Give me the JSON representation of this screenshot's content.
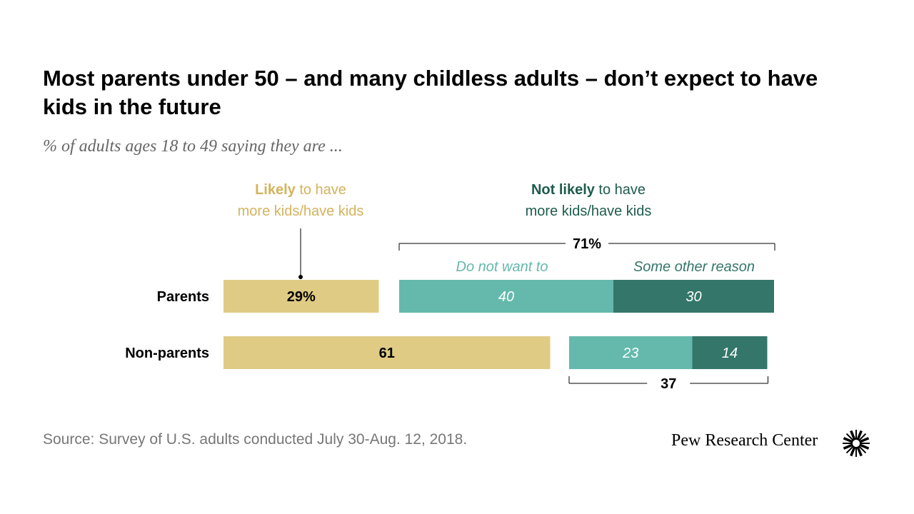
{
  "title": "Most parents under 50 – and many childless adults – don’t expect to have kids in the future",
  "subtitle": "% of adults ages 18 to 49 saying they are ...",
  "source": "Source: Survey of U.S. adults conducted July 30-Aug. 12, 2018.",
  "brand": "Pew Research Center",
  "colors": {
    "likely": "#e0cb85",
    "likely_text": "#d4b35c",
    "do_not_want": "#64b9ac",
    "other_reason": "#34766a",
    "not_likely_text": "#1d5c4e"
  },
  "chart_data": {
    "type": "bar",
    "stacked": true,
    "orientation": "horizontal",
    "categories": [
      "Parents",
      "Non-parents"
    ],
    "header_likely": {
      "bold": "Likely",
      "rest_line1": " to have",
      "line2": "more kids/have kids"
    },
    "header_not_likely": {
      "bold": "Not likely",
      "rest_line1": " to have",
      "line2": "more kids/have kids"
    },
    "subheader_do_not_want": "Do not want to",
    "subheader_other": "Some other reason",
    "series": [
      {
        "name": "Likely to have more kids/have kids",
        "values": [
          29,
          61
        ],
        "labels": [
          "29%",
          "61"
        ]
      },
      {
        "name": "Do not want to",
        "values": [
          40,
          23
        ],
        "labels": [
          "40",
          "23"
        ]
      },
      {
        "name": "Some other reason",
        "values": [
          30,
          14
        ],
        "labels": [
          "30",
          "14"
        ]
      }
    ],
    "not_likely_totals": [
      "71%",
      "37"
    ]
  }
}
